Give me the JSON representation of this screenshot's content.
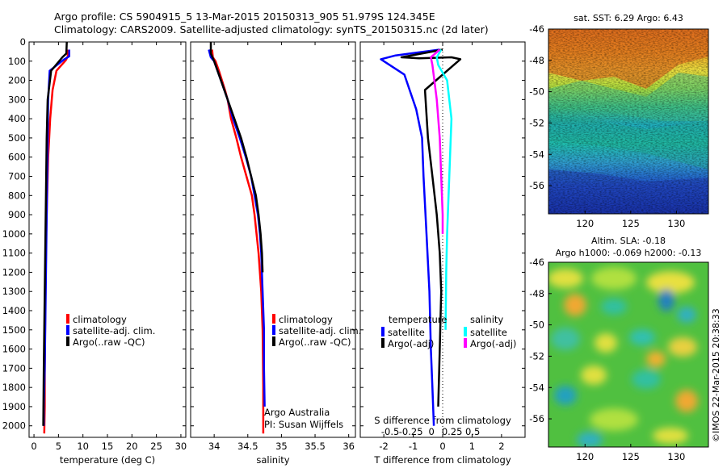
{
  "header": {
    "line1": "Argo profile: CS 5904915_5 13-Mar-2015 20150313_905 51.979S 124.345E",
    "line2": "Climatology: CARS2009. Satellite-adjusted climatology: synTS_20150315.nc (2d later)"
  },
  "credit": "©IMOS 22-Mar-2015 20:38:33",
  "colors": {
    "climatology": "#ff0000",
    "satellite": "#0000ff",
    "argo": "#000000",
    "satellite_salinity": "#00ffff",
    "argo_salinity": "#ff00ff"
  },
  "chart_data": [
    {
      "type": "line",
      "id": "temperature",
      "xlabel": "temperature (deg C)",
      "xlim": [
        -1,
        31
      ],
      "ylim": [
        2060,
        0
      ],
      "xticks": [
        0,
        5,
        10,
        15,
        20,
        25,
        30
      ],
      "yticks": [
        0,
        100,
        200,
        300,
        400,
        500,
        600,
        700,
        800,
        900,
        1000,
        1100,
        1200,
        1300,
        1400,
        1500,
        1600,
        1700,
        1800,
        1900,
        2000
      ],
      "legend": [
        "climatology",
        "satellite-adj. clim.",
        "Argo(..raw -QC)"
      ],
      "series": [
        {
          "name": "climatology",
          "color": "#ff0000",
          "x": [
            6.9,
            6.9,
            6.5,
            4.6,
            3.8,
            3.3,
            3.1,
            2.9,
            2.8,
            2.7,
            2.6,
            2.5,
            2.4,
            2.3,
            2.2,
            2.2,
            2.1
          ],
          "y": [
            40,
            75,
            95,
            150,
            250,
            400,
            500,
            600,
            700,
            800,
            900,
            1000,
            1200,
            1400,
            1700,
            1900,
            2040
          ]
        },
        {
          "name": "satellite-adj. clim.",
          "color": "#0000ff",
          "x": [
            7.2,
            7.2,
            6.2,
            3.2,
            2.9,
            2.8,
            2.7,
            2.6,
            2.5,
            2.4,
            2.3,
            2.2,
            2.1,
            2.0,
            2.0
          ],
          "y": [
            40,
            75,
            90,
            150,
            300,
            500,
            700,
            900,
            1100,
            1300,
            1500,
            1700,
            1800,
            1900,
            2000
          ]
        },
        {
          "name": "Argo(..raw -QC)",
          "color": "#000000",
          "x": [
            6.7,
            6.6,
            5.8,
            3.5,
            2.8,
            2.6,
            2.5,
            2.4,
            2.3,
            2.2,
            2.1,
            2.0,
            1.9
          ],
          "y": [
            0,
            60,
            80,
            150,
            300,
            500,
            700,
            900,
            1100,
            1300,
            1500,
            1700,
            2000
          ]
        }
      ]
    },
    {
      "type": "line",
      "id": "salinity",
      "xlabel": "salinity",
      "xlim": [
        33.65,
        36.1
      ],
      "ylim": [
        2060,
        0
      ],
      "xticks": [
        34,
        34.5,
        35,
        35.5,
        36
      ],
      "legend": [
        "climatology",
        "satellite-adj. clim.",
        "Argo(..raw -QC)"
      ],
      "series": [
        {
          "name": "climatology",
          "color": "#ff0000",
          "x": [
            33.97,
            33.98,
            34.02,
            34.08,
            34.16,
            34.2,
            34.25,
            34.33,
            34.4,
            34.48,
            34.56,
            34.6,
            34.63,
            34.66,
            34.7,
            34.72,
            34.73,
            34.73
          ],
          "y": [
            40,
            80,
            100,
            160,
            250,
            300,
            400,
            500,
            600,
            700,
            800,
            900,
            1000,
            1100,
            1300,
            1500,
            1800,
            2040
          ]
        },
        {
          "name": "satellite-adj. clim.",
          "color": "#0000ff",
          "x": [
            33.92,
            33.95,
            34.0,
            34.1,
            34.2,
            34.28,
            34.38,
            34.47,
            34.55,
            34.6,
            34.65,
            34.68,
            34.7,
            34.72,
            34.74,
            34.74,
            34.75
          ],
          "y": [
            40,
            80,
            100,
            200,
            300,
            400,
            500,
            600,
            700,
            800,
            900,
            1000,
            1100,
            1300,
            1500,
            1700,
            1900
          ]
        },
        {
          "name": "Argo(..raw -QC)",
          "color": "#000000",
          "x": [
            33.95,
            33.95,
            34.0,
            34.1,
            34.2,
            34.3,
            34.4,
            34.48,
            34.55,
            34.62,
            34.66,
            34.69,
            34.71,
            34.72
          ],
          "y": [
            0,
            60,
            100,
            200,
            300,
            400,
            500,
            600,
            700,
            800,
            900,
            1000,
            1100,
            1200
          ]
        }
      ]
    },
    {
      "type": "line",
      "id": "difference",
      "xlabel": "T difference from climatology",
      "xlabel2": "S difference from climatology",
      "xlim": [
        -2.8,
        2.8
      ],
      "ylim": [
        2060,
        0
      ],
      "xticks": [
        -2,
        -1,
        0,
        1,
        2
      ],
      "xticks2": [
        "-0.5",
        "-0.25",
        "0",
        "0.25",
        "0.5"
      ],
      "legend_titles": [
        "temperature",
        "salinity"
      ],
      "legend": [
        "satellite",
        "Argo(-adj)",
        "satellite",
        "Argo(-adj)"
      ],
      "series": [
        {
          "name": "temperature satellite",
          "color": "#0000ff",
          "x": [
            -0.1,
            -1.6,
            -2.1,
            -1.3,
            -0.9,
            -0.7,
            -0.65,
            -0.55,
            -0.45,
            -0.4,
            -0.35,
            -0.3
          ],
          "y": [
            40,
            70,
            90,
            170,
            350,
            500,
            700,
            1000,
            1300,
            1600,
            1800,
            2000
          ]
        },
        {
          "name": "temperature Argo(-adj)",
          "color": "#000000",
          "x": [
            0.0,
            -1.4,
            -0.8,
            0.3,
            0.6,
            -0.6,
            -0.5,
            -0.35,
            -0.2,
            -0.1,
            -0.05,
            -0.1,
            -0.15
          ],
          "y": [
            40,
            80,
            85,
            80,
            90,
            250,
            500,
            700,
            900,
            1100,
            1300,
            1600,
            1900
          ]
        },
        {
          "name": "salinity satellite",
          "color": "#00ffff",
          "x": [
            -0.05,
            -0.2,
            -0.15,
            0.15,
            0.3,
            0.2,
            0.15,
            0.12,
            0.1
          ],
          "y": [
            40,
            80,
            120,
            200,
            400,
            800,
            1000,
            1200,
            1500
          ]
        },
        {
          "name": "salinity Argo(-adj)",
          "color": "#ff00ff",
          "x": [
            -0.1,
            -0.4,
            -0.35,
            -0.2,
            -0.1,
            -0.05,
            0.0,
            0.0
          ],
          "y": [
            40,
            80,
            120,
            300,
            500,
            700,
            900,
            1000
          ]
        }
      ]
    },
    {
      "type": "heatmap",
      "id": "sst-map",
      "title": "sat. SST: 6.29 Argo: 6.43",
      "xlim": [
        116,
        133.5
      ],
      "ylim": [
        -57.8,
        -46
      ],
      "xticks": [
        120,
        125,
        130
      ],
      "yticks": [
        -46,
        -48,
        -50,
        -52,
        -54,
        -56
      ]
    },
    {
      "type": "heatmap",
      "id": "sla-map",
      "title": "Altim. SLA: -0.18",
      "subtitle": "Argo h1000: -0.069 h2000: -0.13",
      "xlim": [
        116,
        133.5
      ],
      "ylim": [
        -57.8,
        -46
      ],
      "xticks": [
        120,
        125,
        130
      ],
      "yticks": [
        -46,
        -48,
        -50,
        -52,
        -54,
        -56
      ]
    }
  ],
  "annotations": {
    "line1": "Argo Australia",
    "line2": "PI: Susan Wijffels"
  }
}
